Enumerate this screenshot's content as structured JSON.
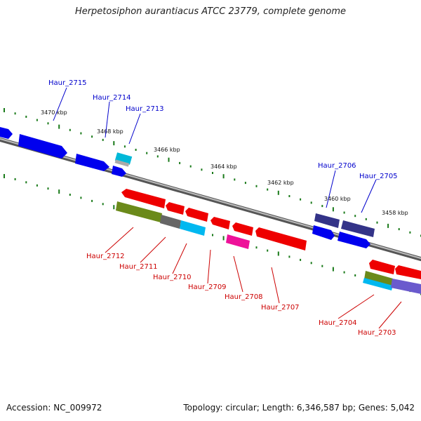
{
  "title": "Herpetosiphon aurantiacus ATCC 23779, complete genome",
  "footer": {
    "accession": "Accession: NC_009972",
    "summary": "Topology: circular; Length: 6,346,587 bp; Genes: 5,042"
  },
  "colors": {
    "forward_label": "#0000cc",
    "reverse_label": "#cc0000",
    "tick": "#1a7a1a",
    "backbone": "#888888"
  },
  "scale_ticks": [
    "3470 kbp",
    "3468 kbp",
    "3466 kbp",
    "3464 kbp",
    "3462 kbp",
    "3460 kbp",
    "3458 kbp"
  ],
  "genes_forward": [
    {
      "id": "Haur_2715",
      "label": "Haur_2715"
    },
    {
      "id": "Haur_2714",
      "label": "Haur_2714"
    },
    {
      "id": "Haur_2713",
      "label": "Haur_2713"
    },
    {
      "id": "Haur_2706",
      "label": "Haur_2706"
    },
    {
      "id": "Haur_2705",
      "label": "Haur_2705"
    }
  ],
  "genes_reverse": [
    {
      "id": "Haur_2712",
      "label": "Haur_2712"
    },
    {
      "id": "Haur_2711",
      "label": "Haur_2711"
    },
    {
      "id": "Haur_2710",
      "label": "Haur_2710"
    },
    {
      "id": "Haur_2709",
      "label": "Haur_2709"
    },
    {
      "id": "Haur_2708",
      "label": "Haur_2708"
    },
    {
      "id": "Haur_2707",
      "label": "Haur_2707"
    },
    {
      "id": "Haur_2704",
      "label": "Haur_2704"
    },
    {
      "id": "Haur_2703",
      "label": "Haur_2703"
    }
  ]
}
